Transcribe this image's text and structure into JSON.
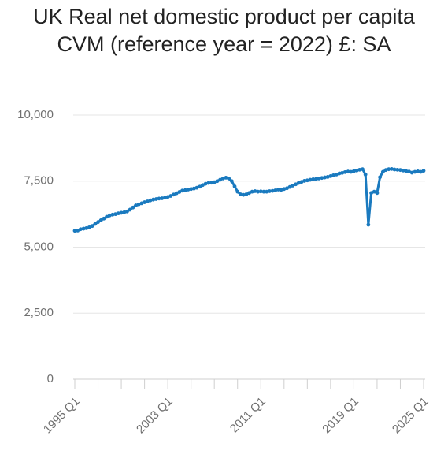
{
  "chart_data": {
    "type": "line",
    "title": "UK Real net domestic product per capita CVM (reference year = 2022) £: SA",
    "categories": [
      "1995 Q1",
      null,
      null,
      null,
      null,
      null,
      null,
      null,
      null,
      null,
      null,
      null,
      null,
      null,
      null,
      null,
      null,
      null,
      null,
      null,
      null,
      null,
      null,
      null,
      null,
      null,
      null,
      null,
      null,
      null,
      null,
      null,
      "2003 Q1",
      null,
      null,
      null,
      null,
      null,
      null,
      null,
      null,
      null,
      null,
      null,
      null,
      null,
      null,
      null,
      null,
      null,
      null,
      null,
      null,
      null,
      null,
      null,
      null,
      null,
      null,
      null,
      null,
      null,
      null,
      null,
      "2011 Q1",
      null,
      null,
      null,
      null,
      null,
      null,
      null,
      null,
      null,
      null,
      null,
      null,
      null,
      null,
      null,
      null,
      null,
      null,
      null,
      null,
      null,
      null,
      null,
      null,
      null,
      null,
      null,
      null,
      null,
      null,
      null,
      "2019 Q1",
      null,
      null,
      null,
      null,
      null,
      null,
      null,
      null,
      null,
      null,
      null,
      null,
      null,
      null,
      null,
      null,
      null,
      null,
      null,
      null,
      null,
      null,
      null,
      "2025 Q1"
    ],
    "values": [
      5620,
      5630,
      5680,
      5700,
      5720,
      5750,
      5800,
      5880,
      5950,
      6020,
      6080,
      6150,
      6200,
      6230,
      6250,
      6280,
      6300,
      6320,
      6350,
      6420,
      6500,
      6580,
      6620,
      6660,
      6700,
      6730,
      6770,
      6800,
      6820,
      6840,
      6850,
      6870,
      6900,
      6940,
      6990,
      7040,
      7090,
      7140,
      7160,
      7180,
      7200,
      7220,
      7250,
      7290,
      7350,
      7400,
      7430,
      7440,
      7460,
      7500,
      7550,
      7600,
      7630,
      7600,
      7500,
      7300,
      7100,
      7000,
      6980,
      7000,
      7050,
      7100,
      7120,
      7100,
      7110,
      7100,
      7100,
      7120,
      7130,
      7150,
      7180,
      7170,
      7200,
      7230,
      7280,
      7330,
      7380,
      7430,
      7470,
      7510,
      7530,
      7550,
      7570,
      7580,
      7600,
      7620,
      7640,
      7660,
      7690,
      7720,
      7750,
      7790,
      7810,
      7840,
      7860,
      7850,
      7880,
      7900,
      7930,
      7950,
      7750,
      5850,
      7050,
      7100,
      7050,
      7650,
      7850,
      7920,
      7950,
      7960,
      7940,
      7930,
      7920,
      7900,
      7880,
      7860,
      7820,
      7850,
      7870,
      7850,
      7890
    ],
    "color": "#1a7abf",
    "ylim": [
      0,
      10000
    ],
    "yticks": [
      0,
      {
        "value": 2500,
        "label": "2,500"
      },
      {
        "value": 5000,
        "label": "5,000"
      },
      {
        "value": 7500,
        "label": "7,500"
      },
      {
        "value": 10000,
        "label": "10,000"
      }
    ],
    "grid": true
  }
}
